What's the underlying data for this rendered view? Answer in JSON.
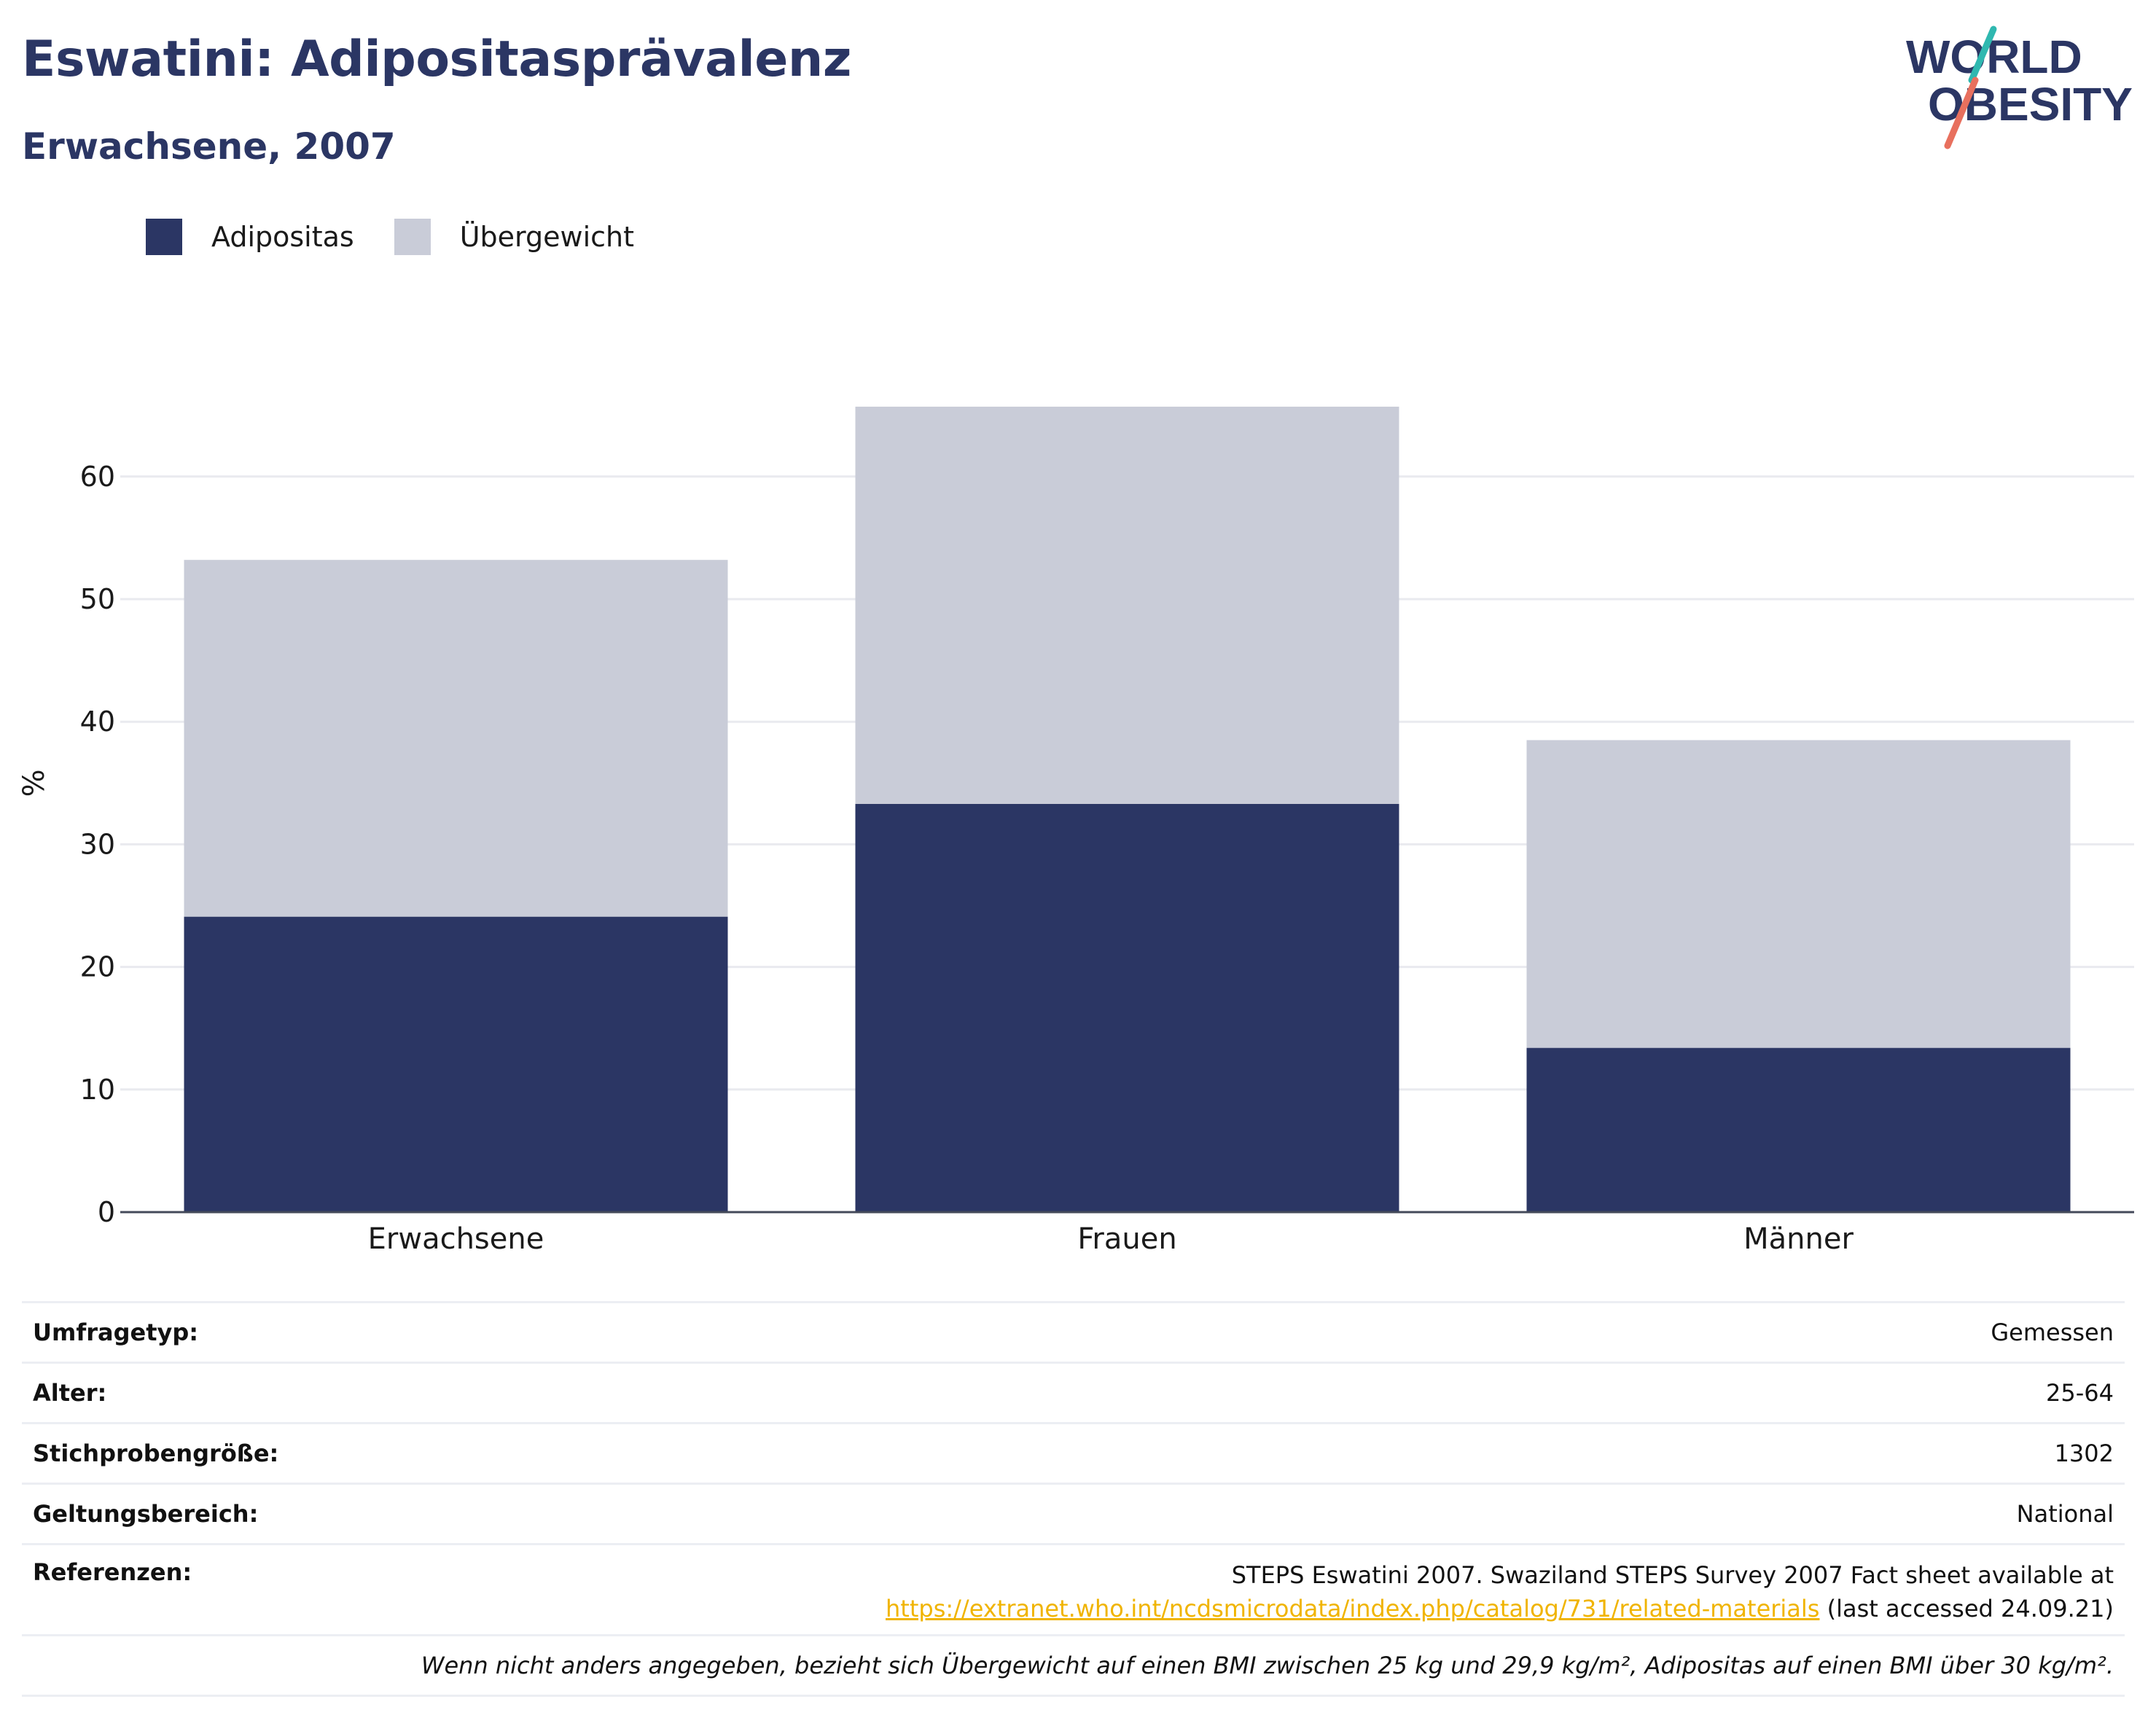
{
  "header": {
    "title": "Eswatini: Adipositasprävalenz",
    "subtitle": "Erwachsene, 2007"
  },
  "logo": {
    "line1": "WORLD",
    "line2": "OBESITY",
    "icon": "world-obesity-logo"
  },
  "legend": {
    "items": [
      {
        "label": "Adipositas",
        "color": "#2b3664"
      },
      {
        "label": "Übergewicht",
        "color": "#c9ccd8"
      }
    ]
  },
  "chart_data": {
    "type": "bar",
    "stacked": true,
    "categories": [
      "Erwachsene",
      "Frauen",
      "Männer"
    ],
    "series": [
      {
        "name": "Adipositas",
        "values": [
          24.1,
          33.3,
          13.4
        ],
        "color": "#2b3664"
      },
      {
        "name": "Übergewicht",
        "values": [
          29.1,
          32.4,
          25.1
        ],
        "color": "#c9ccd8"
      }
    ],
    "ylabel": "%",
    "ylim": [
      0,
      70
    ],
    "yticks": [
      0,
      10,
      20,
      30,
      40,
      50,
      60
    ],
    "grid": true,
    "legend_position": "top-left"
  },
  "meta": {
    "rows": [
      {
        "key": "Umfragetyp:",
        "value": "Gemessen"
      },
      {
        "key": "Alter:",
        "value": "25-64"
      },
      {
        "key": "Stichprobengröße:",
        "value": "1302"
      },
      {
        "key": "Geltungsbereich:",
        "value": "National"
      }
    ],
    "references": {
      "key": "Referenzen:",
      "line1": "STEPS Eswatini 2007. Swaziland STEPS Survey 2007 Fact sheet available at",
      "link": "https://extranet.who.int/ncdsmicrodata/index.php/catalog/731/related-materials",
      "suffix": " (last accessed 24.09.21)"
    },
    "note": "Wenn nicht anders angegeben, bezieht sich Übergewicht auf einen BMI zwischen 25 kg und 29,9 kg/m², Adipositas auf einen BMI über 30 kg/m²."
  }
}
